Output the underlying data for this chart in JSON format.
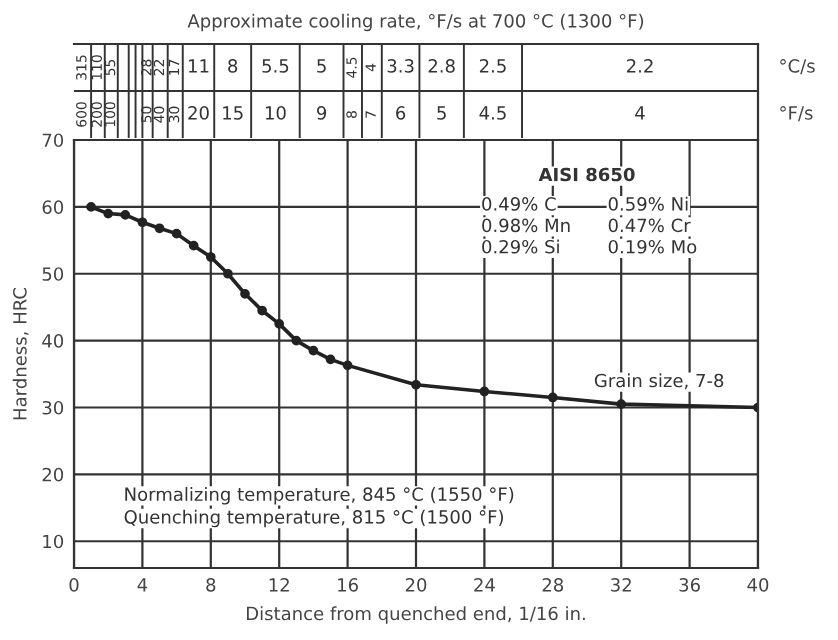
{
  "chart_data": [
    {
      "type": "other",
      "title": "Approximate cooling rate, °F/s at 700 °C (1300 °F)",
      "y2_categories": [
        "°C/s",
        "°F/s"
      ],
      "cell_labels": [
        [
          "315",
          "110",
          "55",
          null,
          null,
          null,
          "28",
          "22",
          "17",
          "11",
          "8",
          "5.5",
          "5",
          "4.5",
          "4",
          "3.3",
          "2.8",
          "2.5",
          "2.2"
        ],
        [
          "600",
          "200",
          "100",
          null,
          null,
          null,
          "50",
          "40",
          "30",
          "20",
          "15",
          "10",
          "9",
          "8",
          "7",
          "6",
          "5",
          "4.5",
          "4"
        ]
      ]
    },
    {
      "type": "line",
      "xlabel": "Distance from quenched end, 1/16 in.",
      "ylabel": "Hardness, HRC",
      "x": [
        1,
        2,
        3,
        4,
        5,
        6,
        7,
        8,
        9,
        10,
        11,
        12,
        13,
        14,
        15,
        16,
        20,
        24,
        28,
        32,
        40
      ],
      "series": [
        {
          "color": "#222222",
          "values": [
            60,
            59,
            58.8,
            57.7,
            56.8,
            56,
            54.2,
            52.5,
            50,
            47,
            44.5,
            42.5,
            40,
            38.5,
            37.2,
            36.3,
            33.4,
            32.4,
            31.5,
            30.5,
            30.0
          ]
        }
      ],
      "marker": "circle",
      "line_style": "solid",
      "grid": true,
      "xlim": [
        0,
        40
      ],
      "xticks": [
        0,
        4,
        8,
        12,
        16,
        20,
        24,
        28,
        32,
        36,
        40
      ],
      "ylim": [
        6,
        70
      ],
      "yticks": [
        10,
        20,
        30,
        40,
        50,
        60,
        70
      ],
      "annotations": [
        "AISI 8650",
        "0.49% C",
        "0.98% Mn",
        "0.29% Si",
        "0.59% Ni",
        "0.47% Cr",
        "0.19% Mo",
        "Grain size, 7-8",
        "Normalizing temperature, 845 °C (1550 °F)",
        "Quenching temperature, 815 °C (1500 °F)"
      ]
    }
  ]
}
